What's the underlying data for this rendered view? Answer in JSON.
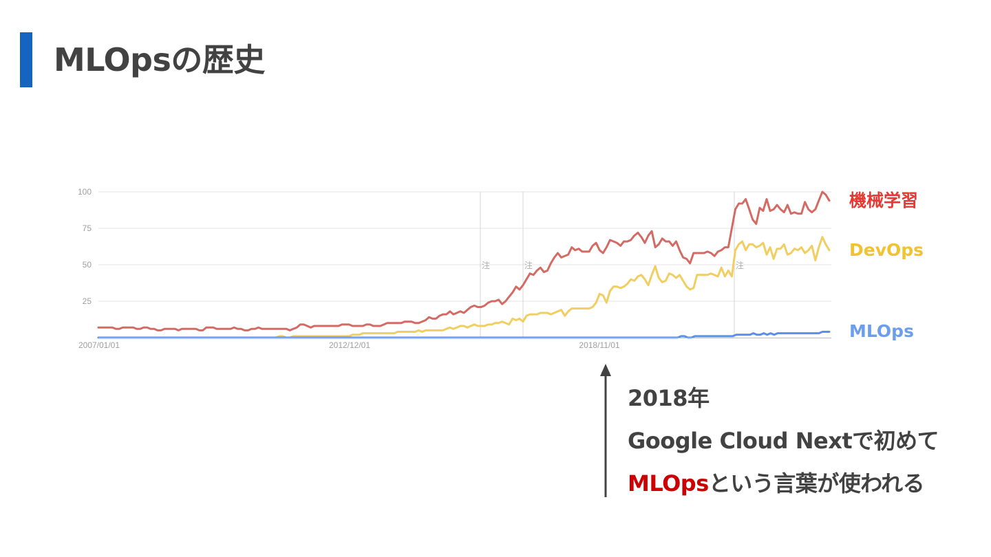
{
  "slide": {
    "title": "MLOpsの歴史",
    "accent_color": "#1565c0"
  },
  "chart_data": {
    "type": "line",
    "ylim": [
      0,
      100
    ],
    "y_ticks": [
      "100",
      "75",
      "50",
      "25"
    ],
    "x_tick_labels": [
      "2007/01/01",
      "2012/12/01",
      "2018/11/01"
    ],
    "note_marker": "注",
    "grid": true,
    "legend_placement": "right",
    "series": [
      {
        "name": "機械学習",
        "color": "#d36b64",
        "label_color": "#e53935",
        "values": [
          7,
          7,
          7,
          7,
          7,
          6,
          6,
          7,
          7,
          7,
          7,
          6,
          6,
          7,
          7,
          6,
          6,
          5,
          5,
          6,
          6,
          6,
          6,
          5,
          6,
          6,
          6,
          6,
          6,
          5,
          5,
          7,
          7,
          7,
          6,
          6,
          6,
          6,
          6,
          7,
          6,
          6,
          5,
          5,
          6,
          6,
          7,
          6,
          6,
          6,
          6,
          6,
          6,
          6,
          6,
          5,
          6,
          7,
          9,
          9,
          8,
          7,
          8,
          8,
          8,
          8,
          8,
          8,
          8,
          8,
          9,
          9,
          9,
          8,
          8,
          8,
          8,
          9,
          9,
          8,
          8,
          8,
          9,
          10,
          10,
          10,
          10,
          10,
          11,
          11,
          11,
          10,
          10,
          11,
          12,
          14,
          13,
          13,
          15,
          16,
          16,
          18,
          16,
          17,
          18,
          17,
          19,
          21,
          22,
          21,
          21,
          22,
          24,
          25,
          25,
          26,
          23,
          25,
          28,
          31,
          35,
          33,
          36,
          40,
          44,
          43,
          46,
          48,
          45,
          46,
          51,
          55,
          58,
          55,
          56,
          57,
          62,
          60,
          61,
          59,
          59,
          59,
          63,
          65,
          60,
          58,
          62,
          67,
          66,
          65,
          63,
          66,
          66,
          67,
          70,
          72,
          69,
          65,
          70,
          73,
          62,
          64,
          68,
          66,
          66,
          63,
          66,
          60,
          55,
          54,
          51,
          58,
          58,
          58,
          58,
          59,
          58,
          56,
          59,
          60,
          62,
          62,
          75,
          88,
          92,
          92,
          95,
          88,
          81,
          78,
          89,
          87,
          95,
          87,
          88,
          91,
          88,
          86,
          91,
          85,
          86,
          85,
          85,
          93,
          88,
          86,
          88,
          94,
          100,
          98,
          94
        ]
      },
      {
        "name": "DevOps",
        "color": "#f1ce61",
        "label_color": "#f1c232",
        "values": [
          0,
          0,
          0,
          0,
          0,
          0,
          0,
          0,
          0,
          0,
          0,
          0,
          0,
          0,
          0,
          0,
          0,
          0,
          0,
          0,
          0,
          0,
          0,
          0,
          0,
          0,
          0,
          0,
          0,
          0,
          0,
          0,
          0,
          0,
          0,
          0,
          0,
          0,
          0,
          0,
          0,
          0,
          0,
          0,
          0,
          0,
          0,
          0,
          0,
          0,
          0,
          0,
          1,
          1,
          0,
          0,
          1,
          1,
          1,
          1,
          1,
          1,
          1,
          1,
          1,
          1,
          1,
          1,
          1,
          1,
          1,
          1,
          1,
          2,
          2,
          2,
          3,
          3,
          3,
          3,
          3,
          3,
          3,
          3,
          3,
          3,
          4,
          4,
          4,
          4,
          4,
          4,
          5,
          4,
          5,
          5,
          5,
          5,
          5,
          5,
          6,
          7,
          6,
          7,
          8,
          8,
          7,
          8,
          9,
          8,
          8,
          8,
          9,
          9,
          10,
          10,
          11,
          10,
          9,
          13,
          12,
          13,
          11,
          15,
          16,
          16,
          16,
          17,
          17,
          17,
          16,
          17,
          18,
          19,
          15,
          18,
          20,
          20,
          20,
          20,
          20,
          20,
          21,
          24,
          30,
          29,
          24,
          32,
          35,
          35,
          34,
          35,
          37,
          40,
          39,
          42,
          43,
          40,
          36,
          43,
          49,
          41,
          38,
          39,
          44,
          43,
          41,
          43,
          39,
          35,
          33,
          34,
          43,
          43,
          43,
          43,
          44,
          43,
          42,
          48,
          42,
          46,
          42,
          60,
          64,
          66,
          60,
          64,
          64,
          62,
          63,
          65,
          57,
          62,
          54,
          61,
          61,
          64,
          57,
          58,
          61,
          60,
          62,
          58,
          60,
          63,
          53,
          62,
          69,
          64,
          60
        ]
      },
      {
        "name": "MLOps",
        "color": "#5b8ee6",
        "label_color": "#6d9eeb",
        "values": [
          0,
          0,
          0,
          0,
          0,
          0,
          0,
          0,
          0,
          0,
          0,
          0,
          0,
          0,
          0,
          0,
          0,
          0,
          0,
          0,
          0,
          0,
          0,
          0,
          0,
          0,
          0,
          0,
          0,
          0,
          0,
          0,
          0,
          0,
          0,
          0,
          0,
          0,
          0,
          0,
          0,
          0,
          0,
          0,
          0,
          0,
          0,
          0,
          0,
          0,
          0,
          0,
          0,
          0,
          0,
          0,
          0,
          0,
          0,
          0,
          0,
          0,
          0,
          0,
          0,
          0,
          0,
          0,
          0,
          0,
          0,
          0,
          0,
          0,
          0,
          0,
          0,
          0,
          0,
          0,
          0,
          0,
          0,
          0,
          0,
          0,
          0,
          0,
          0,
          0,
          0,
          0,
          0,
          0,
          0,
          0,
          0,
          0,
          0,
          0,
          0,
          0,
          0,
          0,
          0,
          0,
          0,
          0,
          0,
          0,
          0,
          0,
          0,
          0,
          0,
          0,
          0,
          0,
          0,
          0,
          0,
          0,
          0,
          0,
          0,
          0,
          0,
          0,
          0,
          0,
          0,
          0,
          0,
          0,
          0,
          0,
          0,
          0,
          0,
          0,
          0,
          0,
          0,
          0,
          0,
          0,
          0,
          0,
          0,
          0,
          0,
          0,
          0,
          0,
          0,
          0,
          0,
          0,
          0,
          0,
          0,
          0,
          0,
          0,
          0,
          0,
          0,
          0,
          0,
          1,
          1,
          0,
          0,
          1,
          1,
          1,
          1,
          1,
          1,
          1,
          1,
          1,
          1,
          1,
          1,
          2,
          2,
          2,
          2,
          2,
          3,
          2,
          2,
          3,
          2,
          3,
          2,
          3,
          3,
          3,
          3,
          3,
          3,
          3,
          3,
          3,
          3,
          3,
          3,
          3,
          4,
          4,
          4
        ]
      }
    ]
  },
  "annotation": {
    "line1": "2018年",
    "line2": "Google Cloud Nextで初めて",
    "line3_highlight": "MLOps",
    "line3_rest": "という言葉が使われる",
    "highlight_color": "#cc0000",
    "arrow_color": "#424242"
  }
}
